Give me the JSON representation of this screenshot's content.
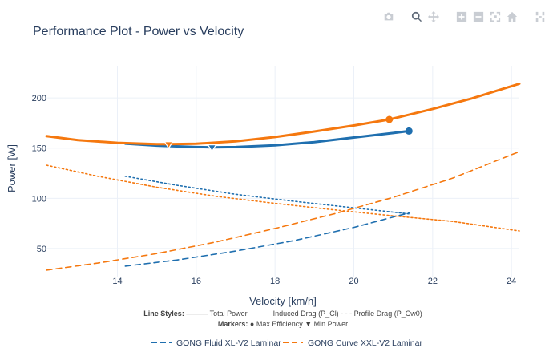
{
  "toolbar": {
    "buttons": [
      {
        "name": "camera-icon",
        "label": "Download plot as a png"
      },
      {
        "name": "zoom-icon",
        "label": "Zoom"
      },
      {
        "name": "pan-icon",
        "label": "Pan"
      },
      {
        "name": "zoom-in-icon",
        "label": "Zoom in"
      },
      {
        "name": "zoom-out-icon",
        "label": "Zoom out"
      },
      {
        "name": "autoscale-icon",
        "label": "Autoscale"
      },
      {
        "name": "home-icon",
        "label": "Reset axes"
      },
      {
        "name": "spikelines-icon",
        "label": "Toggle Spike Lines"
      }
    ]
  },
  "chart_data": {
    "type": "line",
    "title": "Performance Plot - Power vs Velocity",
    "xlabel": "Velocity [km/h]",
    "ylabel": "Power [W]",
    "xlim": [
      12.2,
      24.2
    ],
    "ylim": [
      22,
      232
    ],
    "xticks": [
      14,
      16,
      18,
      20,
      22,
      24
    ],
    "yticks": [
      50,
      100,
      150,
      200
    ],
    "grid": true,
    "annotations": {
      "line1_bold": "Line Styles:",
      "line1_rest": " ——— Total Power  ········· Induced Drag (P_Cl)  - - - Profile Drag (P_Cw0)",
      "line2_bold": "Markers:",
      "line2_rest": " ● Max Efficiency  ▼ Min Power"
    },
    "legend_position": "bottom",
    "series": [
      {
        "name": "GONG Fluid XL-V2 Laminar",
        "color": "#1f6faf",
        "total_power": {
          "x": [
            14.2,
            15.0,
            16.0,
            16.4,
            17.0,
            18.0,
            19.0,
            20.0,
            21.0,
            21.4
          ],
          "y": [
            154.5,
            152.5,
            151.0,
            150.8,
            151.0,
            152.8,
            156.0,
            160.5,
            165.0,
            167.0
          ]
        },
        "induced_drag": {
          "x": [
            14.2,
            15.5,
            17.0,
            18.5,
            20.0,
            21.4
          ],
          "y": [
            122,
            113,
            104,
            97,
            90.5,
            84.5
          ]
        },
        "profile_drag": {
          "x": [
            14.2,
            15.5,
            17.0,
            18.5,
            20.0,
            21.4
          ],
          "y": [
            32.5,
            38.5,
            47.5,
            58,
            71,
            85.5
          ]
        },
        "min_power": {
          "x": 16.4,
          "y": 150.8
        },
        "max_efficiency": {
          "x": 21.4,
          "y": 167.0
        }
      },
      {
        "name": "GONG Curve XXL-V2 Laminar",
        "color": "#f5780f",
        "total_power": {
          "x": [
            12.2,
            13.0,
            14.0,
            15.0,
            15.3,
            16.0,
            17.0,
            18.0,
            19.0,
            20.0,
            20.9,
            22.0,
            23.0,
            24.2
          ],
          "y": [
            162,
            158,
            155.3,
            154.0,
            153.9,
            154.3,
            156.8,
            161.0,
            166.5,
            172.5,
            178.5,
            189.0,
            199.5,
            214.0
          ]
        },
        "induced_drag": {
          "x": [
            12.2,
            13.5,
            15.0,
            16.5,
            18.0,
            19.5,
            21.0,
            22.5,
            24.2
          ],
          "y": [
            133,
            122,
            111,
            102,
            95,
            88.5,
            82.5,
            77,
            67.5
          ]
        },
        "profile_drag": {
          "x": [
            12.2,
            13.5,
            15.0,
            16.5,
            18.0,
            19.5,
            21.0,
            22.5,
            24.2
          ],
          "y": [
            28.5,
            35.5,
            45,
            56.5,
            70,
            84.5,
            101,
            120,
            146.5
          ]
        },
        "min_power": {
          "x": 15.3,
          "y": 153.9
        },
        "max_efficiency": {
          "x": 20.9,
          "y": 178.5
        }
      }
    ]
  }
}
